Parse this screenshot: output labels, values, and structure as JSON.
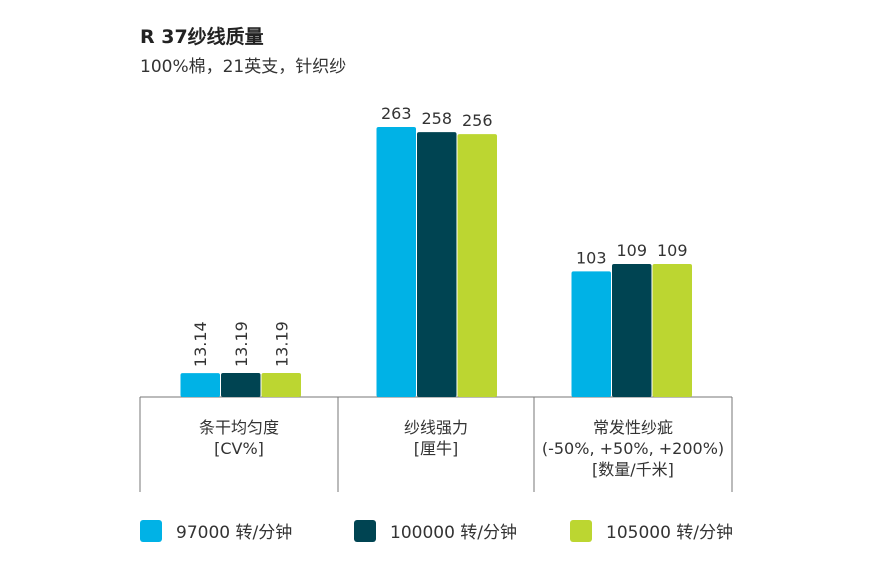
{
  "chart_data": {
    "type": "bar",
    "title": "R 37纱线质量",
    "subtitle": "100%棉，21英支，针织纱",
    "categories": [
      {
        "lines": [
          "条干均匀度",
          "[CV%]"
        ]
      },
      {
        "lines": [
          "纱线强力",
          "[厘牛]"
        ]
      },
      {
        "lines": [
          "常发性纱疵",
          "(-50%, +50%, +200%)",
          "[数量/千米]"
        ]
      }
    ],
    "series": [
      {
        "name": "97000 转/分钟",
        "color": "#00b2e6",
        "values": [
          13.14,
          263,
          103
        ],
        "labels": [
          "13.14",
          "263",
          "103"
        ]
      },
      {
        "name": "100000 转/分钟",
        "color": "#004452",
        "values": [
          13.19,
          258,
          109
        ],
        "labels": [
          "13.19",
          "258",
          "109"
        ]
      },
      {
        "name": "105000 转/分钟",
        "color": "#bcd631",
        "values": [
          13.19,
          256,
          109
        ],
        "labels": [
          "13.19",
          "256",
          "109"
        ]
      }
    ],
    "group_scales": [
      {
        "max": 100,
        "note": "uses own scale per group"
      },
      {
        "max": 300
      },
      {
        "max": 200
      }
    ],
    "legend_position": "bottom",
    "grid": false
  }
}
